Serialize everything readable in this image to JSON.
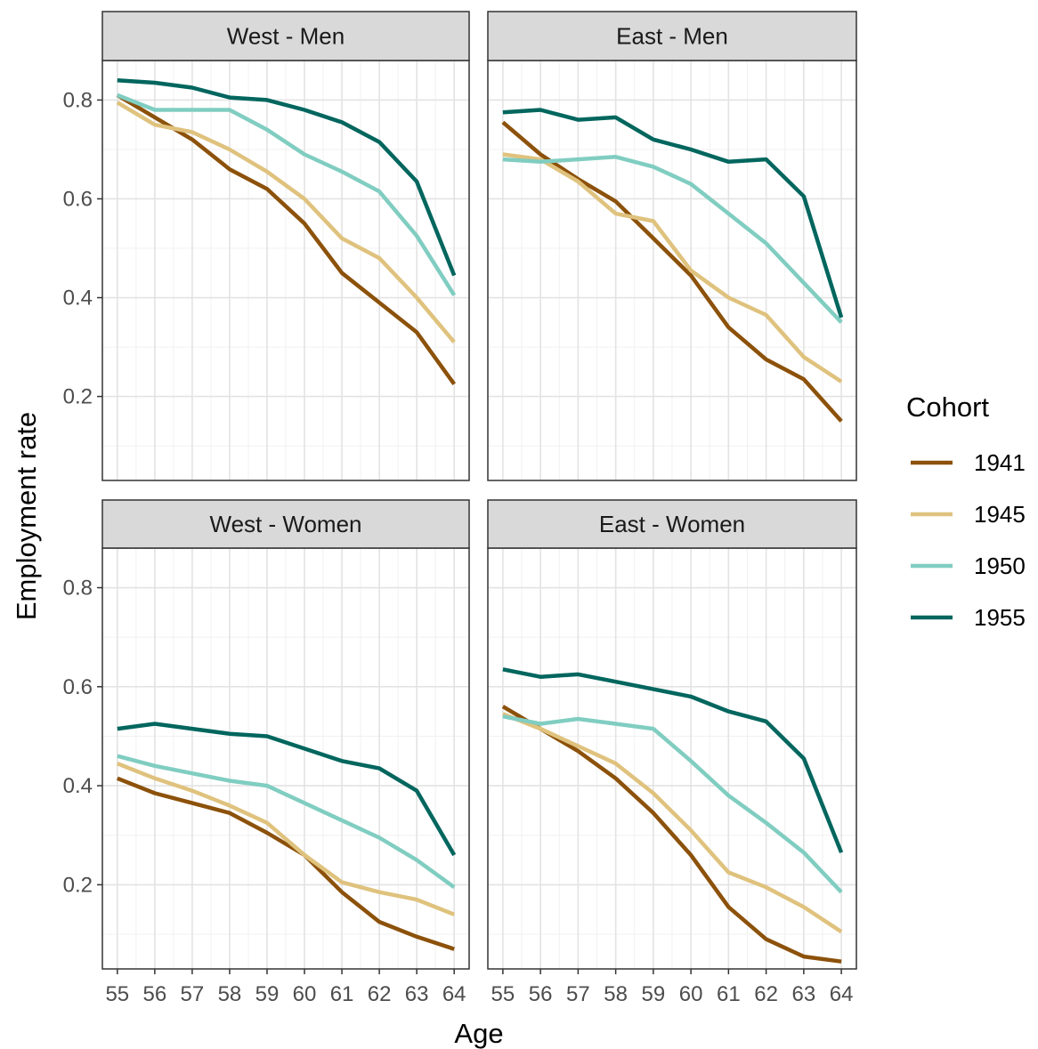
{
  "chart_data": {
    "type": "line",
    "xlabel": "Age",
    "ylabel": "Employment rate",
    "x": [
      55,
      56,
      57,
      58,
      59,
      60,
      61,
      62,
      63,
      64
    ],
    "xlim": [
      54.6,
      64.4
    ],
    "ylim": [
      0.03,
      0.88
    ],
    "y_ticks": [
      0.2,
      0.4,
      0.6,
      0.8
    ],
    "y_tick_labels": [
      "0.2",
      "0.4",
      "0.6",
      "0.8"
    ],
    "grid": true,
    "legend_title": "Cohort",
    "legend_position": "right",
    "series_colors": {
      "1941": "#8c510a",
      "1945": "#dfc27d",
      "1950": "#80cdc1",
      "1955": "#01665e"
    },
    "legend": [
      {
        "name": "1941",
        "color": "#8c510a"
      },
      {
        "name": "1945",
        "color": "#dfc27d"
      },
      {
        "name": "1950",
        "color": "#80cdc1"
      },
      {
        "name": "1955",
        "color": "#01665e"
      }
    ],
    "facets": [
      {
        "title": "West - Men",
        "series": [
          {
            "name": "1941",
            "values": [
              0.81,
              0.765,
              0.72,
              0.66,
              0.62,
              0.55,
              0.45,
              0.39,
              0.33,
              0.225
            ]
          },
          {
            "name": "1945",
            "values": [
              0.795,
              0.75,
              0.735,
              0.7,
              0.655,
              0.6,
              0.52,
              0.48,
              0.4,
              0.31
            ]
          },
          {
            "name": "1950",
            "values": [
              0.81,
              0.78,
              0.78,
              0.78,
              0.74,
              0.69,
              0.655,
              0.615,
              0.525,
              0.405
            ]
          },
          {
            "name": "1955",
            "values": [
              0.84,
              0.835,
              0.825,
              0.805,
              0.8,
              0.78,
              0.755,
              0.715,
              0.635,
              0.445
            ]
          }
        ]
      },
      {
        "title": "East - Men",
        "series": [
          {
            "name": "1941",
            "values": [
              0.755,
              0.69,
              0.64,
              0.595,
              0.52,
              0.445,
              0.34,
              0.275,
              0.235,
              0.15
            ]
          },
          {
            "name": "1945",
            "values": [
              0.69,
              0.68,
              0.635,
              0.57,
              0.555,
              0.455,
              0.4,
              0.365,
              0.28,
              0.23
            ]
          },
          {
            "name": "1950",
            "values": [
              0.68,
              0.675,
              0.68,
              0.685,
              0.665,
              0.63,
              0.57,
              0.51,
              0.43,
              0.35
            ]
          },
          {
            "name": "1955",
            "values": [
              0.775,
              0.78,
              0.76,
              0.765,
              0.72,
              0.7,
              0.675,
              0.68,
              0.605,
              0.36
            ]
          }
        ]
      },
      {
        "title": "West - Women",
        "series": [
          {
            "name": "1941",
            "values": [
              0.415,
              0.385,
              0.365,
              0.345,
              0.305,
              0.26,
              0.185,
              0.125,
              0.095,
              0.07
            ]
          },
          {
            "name": "1945",
            "values": [
              0.445,
              0.415,
              0.39,
              0.36,
              0.325,
              0.26,
              0.205,
              0.185,
              0.17,
              0.14
            ]
          },
          {
            "name": "1950",
            "values": [
              0.46,
              0.44,
              0.425,
              0.41,
              0.4,
              0.365,
              0.33,
              0.295,
              0.25,
              0.195
            ]
          },
          {
            "name": "1955",
            "values": [
              0.515,
              0.525,
              0.515,
              0.505,
              0.5,
              0.475,
              0.45,
              0.435,
              0.39,
              0.26
            ]
          }
        ]
      },
      {
        "title": "East - Women",
        "series": [
          {
            "name": "1941",
            "values": [
              0.56,
              0.515,
              0.47,
              0.415,
              0.345,
              0.26,
              0.155,
              0.09,
              0.055,
              0.045
            ]
          },
          {
            "name": "1945",
            "values": [
              0.545,
              0.515,
              0.48,
              0.445,
              0.385,
              0.31,
              0.225,
              0.195,
              0.155,
              0.105
            ]
          },
          {
            "name": "1950",
            "values": [
              0.54,
              0.525,
              0.535,
              0.525,
              0.515,
              0.45,
              0.38,
              0.325,
              0.265,
              0.185
            ]
          },
          {
            "name": "1955",
            "values": [
              0.635,
              0.62,
              0.625,
              0.61,
              0.595,
              0.58,
              0.55,
              0.53,
              0.455,
              0.265
            ]
          }
        ]
      }
    ]
  }
}
